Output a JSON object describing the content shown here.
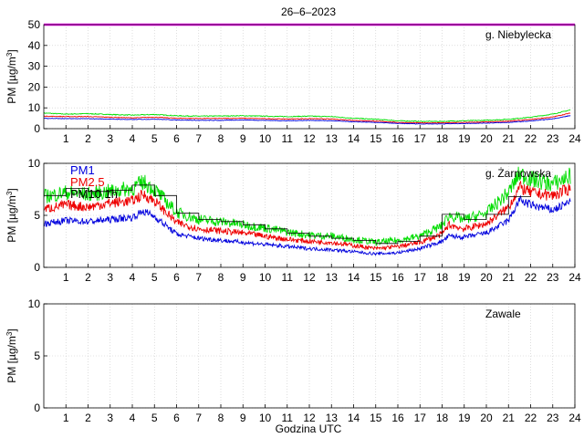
{
  "figure": {
    "title": "26–6–2023",
    "xlabel": "Godzina UTC"
  },
  "chart_data": [
    {
      "type": "line",
      "station": "g. Niebylecka",
      "ylabel": "PM [µg/m",
      "ylabel_sup": "3",
      "ylabel_close": "]",
      "xlim": [
        0,
        24
      ],
      "ylim": [
        0,
        50
      ],
      "yticks": [
        0,
        10,
        20,
        30,
        40,
        50
      ],
      "xticks": [
        1,
        2,
        3,
        4,
        5,
        6,
        7,
        8,
        9,
        10,
        11,
        12,
        13,
        14,
        15,
        16,
        17,
        18,
        19,
        20,
        21,
        22,
        23,
        24
      ],
      "grid": true,
      "reference_line": {
        "y": 50,
        "color": "#ff00ff"
      },
      "x": [
        0,
        1,
        2,
        3,
        4,
        5,
        6,
        7,
        8,
        9,
        10,
        11,
        12,
        13,
        14,
        15,
        16,
        17,
        18,
        19,
        20,
        21,
        22,
        23,
        23.8
      ],
      "series": [
        {
          "key": "pm10",
          "color": "#00dd00",
          "values": [
            7.5,
            7.0,
            7.2,
            6.8,
            6.5,
            6.8,
            6.2,
            6.0,
            6.1,
            6.2,
            6.0,
            5.8,
            6.0,
            5.8,
            5.0,
            4.5,
            3.8,
            3.5,
            3.5,
            3.8,
            4.0,
            4.5,
            5.5,
            7.0,
            9.0
          ]
        },
        {
          "key": "pm25",
          "color": "#ee0000",
          "values": [
            6.0,
            5.8,
            5.8,
            5.5,
            5.2,
            5.5,
            5.0,
            4.9,
            4.9,
            5.0,
            4.8,
            4.6,
            4.8,
            4.6,
            4.0,
            3.6,
            3.0,
            2.8,
            2.8,
            3.0,
            3.2,
            3.6,
            4.4,
            5.6,
            7.5
          ]
        },
        {
          "key": "pm1",
          "color": "#0000dd",
          "values": [
            5.0,
            4.8,
            4.8,
            4.6,
            4.4,
            4.6,
            4.2,
            4.0,
            4.0,
            4.2,
            4.0,
            3.8,
            4.0,
            3.8,
            3.3,
            3.0,
            2.5,
            2.3,
            2.3,
            2.5,
            2.7,
            3.0,
            3.7,
            4.7,
            6.3
          ]
        }
      ]
    },
    {
      "type": "line",
      "station": "g. Żarnowska",
      "ylabel": "PM [µg/m",
      "ylabel_sup": "3",
      "ylabel_close": "]",
      "xlim": [
        0,
        24
      ],
      "ylim": [
        0,
        10
      ],
      "yticks": [
        0,
        5,
        10
      ],
      "xticks": [
        1,
        2,
        3,
        4,
        5,
        6,
        7,
        8,
        9,
        10,
        11,
        12,
        13,
        14,
        15,
        16,
        17,
        18,
        19,
        20,
        21,
        22,
        23,
        24
      ],
      "grid": true,
      "legend": [
        "PM1",
        "PM2.5",
        "PM10 1h"
      ],
      "legend_colors": [
        "#0000dd",
        "#ee0000",
        "#000000"
      ],
      "x": [
        0,
        1,
        2,
        3,
        4,
        4.5,
        5,
        6,
        7,
        8,
        9,
        10,
        11,
        12,
        13,
        14,
        15,
        16,
        17,
        18,
        18.3,
        19,
        20,
        21,
        21.5,
        22,
        23,
        23.8
      ],
      "series": [
        {
          "key": "pm10",
          "color": "#00dd00",
          "values": [
            6.8,
            7.2,
            7.0,
            7.3,
            7.6,
            8.2,
            7.5,
            5.3,
            4.6,
            4.4,
            4.1,
            3.8,
            3.4,
            3.1,
            3.0,
            2.7,
            2.4,
            2.6,
            3.0,
            4.0,
            5.0,
            4.6,
            5.2,
            7.2,
            9.0,
            8.5,
            8.0,
            8.8
          ]
        },
        {
          "key": "pm25",
          "color": "#ee0000",
          "values": [
            5.6,
            6.0,
            5.8,
            6.2,
            6.4,
            7.0,
            6.4,
            4.3,
            3.7,
            3.5,
            3.3,
            3.0,
            2.7,
            2.5,
            2.4,
            2.1,
            1.8,
            2.0,
            2.4,
            3.2,
            4.1,
            3.7,
            4.2,
            5.8,
            7.7,
            7.2,
            6.9,
            7.6
          ]
        },
        {
          "key": "pm1",
          "color": "#0000dd",
          "values": [
            4.2,
            4.5,
            4.4,
            4.6,
            4.8,
            5.4,
            4.9,
            3.2,
            2.8,
            2.6,
            2.4,
            2.2,
            2.0,
            1.8,
            1.7,
            1.5,
            1.3,
            1.4,
            1.8,
            2.5,
            3.0,
            2.9,
            3.3,
            4.5,
            6.5,
            6.0,
            5.5,
            6.3
          ]
        }
      ],
      "hourly_pm10": [
        6.9,
        7.6,
        7.3,
        7.4,
        7.9,
        6.9,
        5.2,
        4.6,
        4.4,
        4.1,
        3.7,
        3.3,
        3.0,
        2.8,
        2.6,
        2.3,
        2.5,
        3.0,
        5.1,
        4.6,
        5.1,
        6.8
      ]
    },
    {
      "type": "line",
      "station": "Zawale",
      "ylabel": "PM [µg/m",
      "ylabel_sup": "3",
      "ylabel_close": "]",
      "xlim": [
        0,
        24
      ],
      "ylim": [
        0,
        10
      ],
      "yticks": [
        0,
        5,
        10
      ],
      "xticks": [
        1,
        2,
        3,
        4,
        5,
        6,
        7,
        8,
        9,
        10,
        11,
        12,
        13,
        14,
        15,
        16,
        17,
        18,
        19,
        20,
        21,
        22,
        23,
        24
      ],
      "grid": true,
      "x": [],
      "series": []
    }
  ]
}
